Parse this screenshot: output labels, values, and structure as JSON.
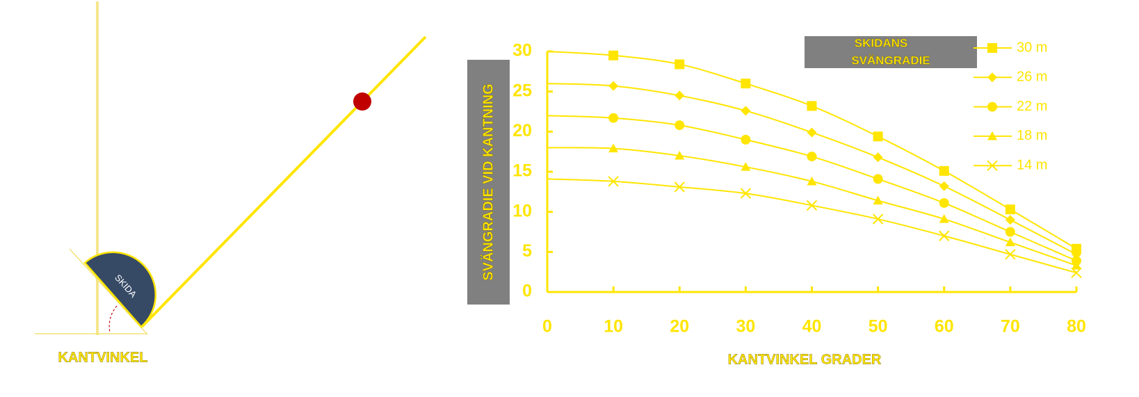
{
  "diagram": {
    "ski_label": "SKIDA",
    "caption": "KANTVINKEL"
  },
  "chart_data": {
    "type": "line",
    "ylabel": "SVÄNGRADIE VID KANTNING",
    "xlabel": "KANTVINKEL GRADER",
    "legend_title": [
      "SKIDANS",
      "SVÄNGRADIE"
    ],
    "x": [
      0,
      10,
      20,
      30,
      40,
      50,
      60,
      70,
      80
    ],
    "series": [
      {
        "name": "30 m",
        "color": "#ffe500",
        "marker": "square",
        "values": [
          30,
          29.5,
          28.4,
          26.0,
          23.2,
          19.4,
          15.1,
          10.3,
          5.4
        ]
      },
      {
        "name": "26 m",
        "color": "#ffe500",
        "marker": "diamond",
        "values": [
          26,
          25.7,
          24.5,
          22.6,
          19.9,
          16.8,
          13.2,
          9.0,
          4.7
        ]
      },
      {
        "name": "22 m",
        "color": "#ffe500",
        "marker": "circle",
        "values": [
          22,
          21.7,
          20.8,
          19.0,
          16.9,
          14.1,
          11.1,
          7.5,
          3.9
        ]
      },
      {
        "name": "18 m",
        "color": "#ffe500",
        "marker": "triangle",
        "values": [
          18,
          17.9,
          17.0,
          15.6,
          13.8,
          11.4,
          9.1,
          6.2,
          3.3
        ]
      },
      {
        "name": "14 m",
        "color": "#ffe500",
        "marker": "x",
        "values": [
          14.1,
          13.8,
          13.1,
          12.3,
          10.8,
          9.1,
          7.0,
          4.7,
          2.4
        ]
      }
    ],
    "xlim": [
      0,
      80
    ],
    "xticks": [
      0,
      10,
      20,
      30,
      40,
      50,
      60,
      70,
      80
    ],
    "ylim": [
      0,
      30
    ],
    "yticks": [
      0,
      5,
      10,
      15,
      20,
      25,
      30
    ]
  }
}
